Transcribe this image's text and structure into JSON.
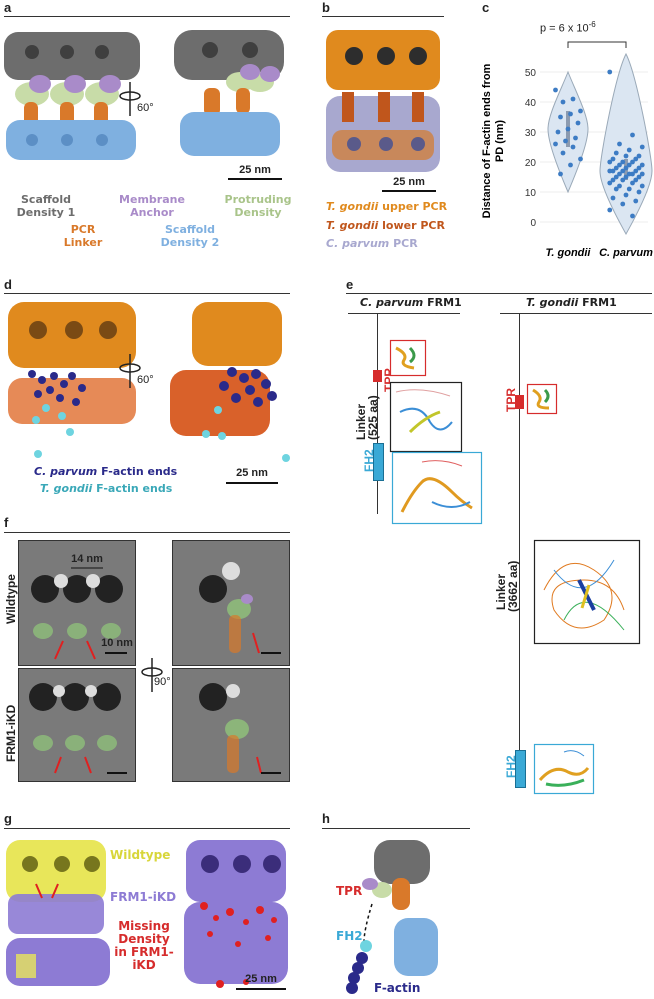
{
  "panels": {
    "a": {
      "label": "a",
      "rotation": "60°",
      "scale": "25 nm",
      "legend": {
        "scaffold1": "Scaffold Density 1",
        "membrane": "Membrane Anchor",
        "protruding": "Protruding Density",
        "pcr": "PCR Linker",
        "scaffold2": "Scaffold Density 2"
      }
    },
    "b": {
      "label": "b",
      "scale": "25 nm",
      "legend": [
        {
          "italic": "T. gondii",
          "rest": " upper PCR",
          "color": "#e08a1e"
        },
        {
          "italic": "T. gondii",
          "rest": " lower PCR",
          "color": "#c0561c"
        },
        {
          "italic": "C. parvum",
          "rest": " PCR",
          "color": "#a8a8cf"
        }
      ]
    },
    "c": {
      "label": "c",
      "pvalue": "p = 6 x 10",
      "pexp": "-6"
    },
    "d": {
      "label": "d",
      "rotation": "60°",
      "scale": "25 nm",
      "legend": [
        {
          "italic": "C. parvum",
          "rest": " F-actin ends",
          "color": "#2a2a8a"
        },
        {
          "italic": "T. gondii",
          "rest": " F-actin ends",
          "color": "#3aa8b8"
        }
      ]
    },
    "e": {
      "label": "e",
      "left_title_it": "C. parvum",
      "left_title": " FRM1",
      "right_title_it": "T. gondii",
      "right_title": " FRM1",
      "tpr": "TPR",
      "fh2": "FH2",
      "left_linker": "Linker",
      "left_len": "(525 aa)",
      "right_linker": "Linker",
      "right_len": "(3662 aa)"
    },
    "f": {
      "label": "f",
      "row1": "Wildtype",
      "row2": "FRM1-iKD",
      "spacing": "14 nm",
      "scale": "10 nm",
      "rotation": "90°"
    },
    "g": {
      "label": "g",
      "wildtype": "Wildtype",
      "ikd": "FRM1-iKD",
      "missing": "Missing Density in FRM1-iKD",
      "scale": "25 nm"
    },
    "h": {
      "label": "h",
      "tpr": "TPR",
      "fh2": "FH2",
      "factin": "F-actin"
    }
  },
  "colors": {
    "scaffold1": "#6d6d6d",
    "membrane": "#a98bc9",
    "protruding": "#c8dca8",
    "pcr": "#d9792a",
    "scaffold2": "#7fb0e0",
    "tpr": "#d62c2c",
    "fh2": "#3aa9d6",
    "ikd": "#8d7bd4",
    "wt": "#e8e65a"
  },
  "chart_data": {
    "type": "scatter",
    "title": "",
    "ylabel": "Distance of F-actin ends from PD (nm)",
    "xlabel": "",
    "categories": [
      "T. gondii",
      "C. parvum"
    ],
    "yticks": [
      0,
      10,
      20,
      30,
      40,
      50
    ],
    "ylim": [
      -2,
      56
    ],
    "series": [
      {
        "name": "T. gondii",
        "values": [
          44,
          41,
          40,
          37,
          36,
          35,
          33,
          31,
          30,
          28,
          27,
          26,
          25,
          23,
          21,
          19,
          16
        ]
      },
      {
        "name": "C. parvum",
        "values": [
          50,
          29,
          26,
          25,
          24,
          23,
          22,
          22,
          21,
          21,
          20,
          20,
          20,
          19,
          19,
          19,
          18,
          18,
          18,
          17,
          17,
          17,
          17,
          16,
          16,
          16,
          16,
          15,
          15,
          15,
          14,
          14,
          14,
          13,
          13,
          12,
          12,
          11,
          11,
          10,
          9,
          8,
          7,
          6,
          4,
          2
        ]
      }
    ],
    "summary": {
      "T. gondii": {
        "median": 31,
        "q1": 25,
        "q3": 37
      },
      "C. parvum": {
        "median": 17,
        "q1": 14,
        "q3": 21
      }
    }
  }
}
